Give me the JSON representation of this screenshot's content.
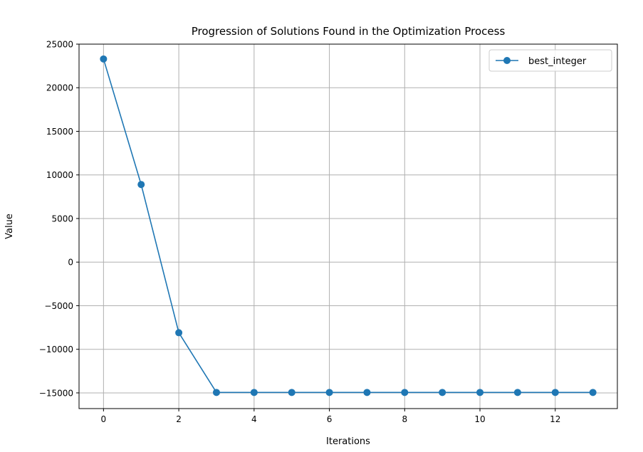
{
  "chart_data": {
    "type": "line",
    "title": "Progression of Solutions Found in the Optimization Process",
    "xlabel": "Iterations",
    "ylabel": "Value",
    "xlim": [
      -0.65,
      13.65
    ],
    "ylim": [
      -16800,
      25000
    ],
    "xticks": [
      0,
      2,
      4,
      6,
      8,
      10,
      12
    ],
    "yticks": [
      -15000,
      -10000,
      -5000,
      0,
      5000,
      10000,
      15000,
      20000,
      25000
    ],
    "ytick_labels": [
      "−15000",
      "−10000",
      "−5000",
      "0",
      "5000",
      "10000",
      "15000",
      "20000",
      "25000"
    ],
    "grid": true,
    "legend_position": "top-right",
    "series": [
      {
        "name": "best_integer",
        "color": "#1f77b4",
        "marker": "circle",
        "x": [
          0,
          1,
          2,
          3,
          4,
          5,
          6,
          7,
          8,
          9,
          10,
          11,
          12,
          13
        ],
        "y": [
          23300,
          8900,
          -8100,
          -14950,
          -14950,
          -14950,
          -14950,
          -14950,
          -14950,
          -14950,
          -14950,
          -14950,
          -14950,
          -14950
        ]
      }
    ]
  }
}
